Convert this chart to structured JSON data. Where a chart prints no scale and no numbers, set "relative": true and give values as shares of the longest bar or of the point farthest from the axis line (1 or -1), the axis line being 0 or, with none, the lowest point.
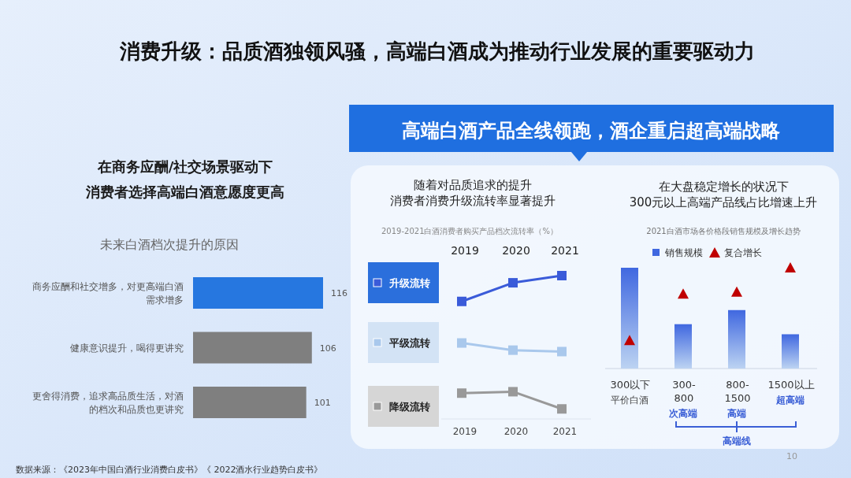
{
  "chart_data": [
    {
      "type": "bar",
      "orientation": "horizontal",
      "title": "未来白酒档次提升的原因",
      "categories": [
        "商务应酬和社交增多，对更高端白酒需求增多",
        "健康意识提升，喝得更讲究",
        "更舍得消费，追求高品质生活，对酒的档次和品质也更讲究"
      ],
      "values": [
        116,
        106,
        101
      ],
      "colors": [
        "#2677e0",
        "#7f7f7f",
        "#7f7f7f"
      ],
      "tick_labels": "y",
      "data_labels": true,
      "annotations": [
        "消费升级：品质酒独领风骚，高端白酒成为推动行业发展的重要驱动力",
        "在商务应酬/社交场景驱动下",
        "消费者选择高端白酒意愿度更高",
        "数据来源：《2023年中国白酒行业消费白皮书》《 2022酒水行业趋势白皮书》",
        "10"
      ]
    },
    {
      "type": "line",
      "relative": true,
      "title": "随着对品质追求的提升消费者消费升级流转率显著提升",
      "subtitle": "2019-2021白酒消费者购买产品档次流转率（%）",
      "categories": [
        "2019",
        "2020",
        "2021"
      ],
      "marker": "square",
      "legend": "left",
      "series": [
        {
          "name": "升级流转",
          "color": "#3a5bd9",
          "values": [
            0.82,
            0.95,
            1.0
          ]
        },
        {
          "name": "平级流转",
          "color": "#a9c8ec",
          "values": [
            0.53,
            0.48,
            0.47
          ]
        },
        {
          "name": "降级流转",
          "color": "#999999",
          "values": [
            0.18,
            0.19,
            0.07
          ]
        }
      ],
      "annotations": [
        "高端白酒产品全线领跑，酒企重启超高端战略"
      ]
    },
    {
      "type": "bar",
      "relative": true,
      "title": "在大盘稳定增长的状况下300元以上高端产品线占比增速上升",
      "subtitle": "2021白酒市场各价格段销售规模及增长趋势",
      "categories": [
        "300以下",
        "300-800",
        "800-1500",
        "1500以上"
      ],
      "marker": "triangle",
      "legend": "top",
      "series": [
        {
          "name": "销售规模",
          "color": "#4068e0",
          "values": [
            1.0,
            0.44,
            0.58,
            0.34
          ]
        },
        {
          "name": "复合增长",
          "type": "scatter",
          "color": "#c00000",
          "values": [
            0.28,
            0.74,
            0.76,
            1.0
          ]
        }
      ],
      "annotations": [
        "平价白酒",
        "次高端",
        "高端",
        "超高端",
        "高端线"
      ]
    }
  ]
}
